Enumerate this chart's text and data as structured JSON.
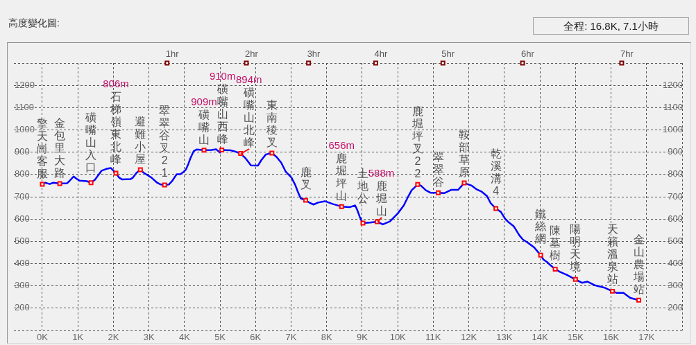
{
  "chart_data": {
    "type": "line",
    "title": "高度變化圖:",
    "subtitle": "全程: 16.8K, 7.1小時",
    "xlim": [
      -0.8,
      18
    ],
    "xticks": [
      {
        "value": 0,
        "label": "0K"
      },
      {
        "value": 1,
        "label": "1K"
      },
      {
        "value": 2,
        "label": "2K"
      },
      {
        "value": 3,
        "label": "3K"
      },
      {
        "value": 4,
        "label": "4K"
      },
      {
        "value": 5,
        "label": "5K"
      },
      {
        "value": 6,
        "label": "6K"
      },
      {
        "value": 7,
        "label": "7K"
      },
      {
        "value": 8,
        "label": "8K"
      },
      {
        "value": 9,
        "label": "9K"
      },
      {
        "value": 10,
        "label": "10K"
      },
      {
        "value": 11,
        "label": "11K"
      },
      {
        "value": 12,
        "label": "12K"
      },
      {
        "value": 13,
        "label": "13K"
      },
      {
        "value": 14,
        "label": "14K"
      },
      {
        "value": 15,
        "label": "15K"
      },
      {
        "value": 16,
        "label": "16K"
      },
      {
        "value": 17,
        "label": "17K"
      },
      {
        "value": 18,
        "label": null
      }
    ],
    "ylim": [
      100,
      1300
    ],
    "yticks": [
      {
        "value": 100,
        "label": null
      },
      200,
      300,
      400,
      500,
      600,
      700,
      800,
      900,
      1000,
      1100,
      1200,
      {
        "value": 1300,
        "label": null
      }
    ],
    "y2lim": [
      100,
      1300
    ],
    "y2ticks": [
      200,
      300,
      400,
      500,
      600,
      700,
      800,
      900,
      1000,
      1100,
      1200
    ],
    "grid": true,
    "series": [
      {
        "color": "#0000ff",
        "marker": "none",
        "x": [
          0,
          0.08,
          0.21,
          0.31,
          0.49,
          0.7,
          0.76,
          0.88,
          0.99,
          1.05,
          1.25,
          1.37,
          1.48,
          1.57,
          1.67,
          1.8,
          1.93,
          2.07,
          2.16,
          2.24,
          2.48,
          2.55,
          2.65,
          2.76,
          2.84,
          3.07,
          3.23,
          3.33,
          3.44,
          3.56,
          3.65,
          3.78,
          3.88,
          3.98,
          4.04,
          4.11,
          4.17,
          4.26,
          4.34,
          4.55,
          4.76,
          4.89,
          5,
          5.05,
          5.31,
          5.44,
          5.58,
          5.71,
          5.87,
          6.07,
          6.16,
          6.29,
          6.46,
          6.59,
          6.72,
          6.85,
          7.01,
          7.11,
          7.2,
          7.27,
          7.41,
          7.53,
          7.63,
          7.76,
          7.95,
          8.18,
          8.42,
          8.64,
          8.8,
          8.86,
          8.93,
          8.99,
          9.02,
          9.22,
          9.42,
          9.58,
          9.78,
          10,
          10.17,
          10.3,
          10.39,
          10.56,
          10.65,
          10.79,
          10.92,
          11.14,
          11.31,
          11.5,
          11.7,
          11.87,
          11.95,
          12.08,
          12.21,
          12.35,
          12.51,
          12.61,
          12.76,
          12.9,
          13.03,
          13.13,
          13.26,
          13.42,
          13.52,
          13.65,
          13.84,
          14.02,
          14.1,
          14.2,
          14.3,
          14.43,
          14.56,
          14.75,
          15,
          15.18,
          15.34,
          15.54,
          15.8,
          16.04,
          16.15,
          16.35,
          16.54,
          16.78
        ],
        "values": [
          756,
          763,
          757,
          763,
          759,
          761,
          770,
          791,
          778,
          772,
          770,
          763,
          776,
          796,
          817,
          825,
          829,
          806,
          786,
          778,
          779,
          786,
          807,
          821,
          809,
          786,
          763,
          755,
          753,
          755,
          770,
          801,
          801,
          812,
          822,
          848,
          874,
          905,
          912,
          909,
          910,
          913,
          898,
          910,
          908,
          902,
          894,
          874,
          841,
          840,
          864,
          890,
          896,
          879,
          853,
          812,
          786,
          755,
          718,
          693,
          684,
          672,
          665,
          674,
          680,
          667,
          656,
          653,
          661,
          641,
          610,
          589,
          582,
          584,
          588,
          576,
          589,
          625,
          661,
          703,
          729,
          755,
          750,
          729,
          718,
          718,
          716,
          731,
          731,
          762,
          757,
          750,
          734,
          724,
          703,
          672,
          647,
          632,
          599,
          584,
          568,
          527,
          508,
          495,
          472,
          438,
          418,
          407,
          392,
          375,
          363,
          350,
          329,
          314,
          319,
          303,
          293,
          276,
          269,
          269,
          246,
          236
        ]
      },
      {
        "type": "scatter",
        "color": "#ff0000",
        "marker": "square",
        "x": [
          0,
          0.49,
          1.37,
          2.07,
          2.76,
          3.44,
          4.55,
          5.05,
          5.58,
          6.46,
          7.41,
          8.42,
          9.02,
          9.42,
          10.56,
          11.14,
          11.87,
          12.76,
          14.02,
          14.43,
          15,
          16.04,
          16.78
        ],
        "values": [
          756,
          759,
          763,
          806,
          821,
          753,
          909,
          910,
          894,
          896,
          684,
          656,
          582,
          588,
          755,
          718,
          762,
          647,
          438,
          375,
          329,
          276,
          236
        ]
      },
      {
        "type": "scatter",
        "color": "#800000",
        "marker": "square",
        "x": [
          3.51,
          5.74,
          7.49,
          9.38,
          11.27,
          13.51,
          16.3
        ],
        "values": [
          1300,
          1300,
          1300,
          1300,
          1300,
          1300,
          1300
        ]
      }
    ],
    "annotations": [
      {
        "text": "擎天崗客服",
        "x": 0,
        "y": 756
      },
      {
        "text": "金包里大路",
        "x": 0.49,
        "y": 759
      },
      {
        "text": "磺嘴山入口",
        "x": 1.37,
        "y": 763
      },
      "806m",
      {
        "text": "石梯嶺東北峰",
        "x": 2.07,
        "y": 806
      },
      {
        "text": "避難小屋",
        "x": 2.76,
        "y": 821
      },
      {
        "text": "翠翠谷叉21",
        "x": 3.44,
        "y": 753
      },
      "909m",
      {
        "text": "磺嘴山",
        "x": 4.55,
        "y": 909
      },
      "910m",
      {
        "text": "磺嘴山西峰",
        "x": 5.05,
        "y": 910
      },
      "894m",
      {
        "text": "磺嘴山北峰",
        "x": 5.58,
        "y": 894
      },
      {
        "text": "東南稜叉",
        "x": 6.46,
        "y": 896
      },
      {
        "text": "鹿叉",
        "x": 7.41,
        "y": 684
      },
      "656m",
      {
        "text": "鹿堀坪山",
        "x": 8.42,
        "y": 656
      },
      {
        "text": "土地公",
        "x": 9.02,
        "y": 582
      },
      "588m",
      {
        "text": "鹿堀山",
        "x": 9.42,
        "y": 588
      },
      {
        "text": "鹿堀坪叉22",
        "x": 10.56,
        "y": 755
      },
      {
        "text": "翠翠谷",
        "x": 11.14,
        "y": 718
      },
      {
        "text": "鞍部草原",
        "x": 11.87,
        "y": 762
      },
      {
        "text": "乾溪溝4",
        "x": 12.76,
        "y": 647
      },
      {
        "text": "鐵絲網",
        "x": 14.02,
        "y": 438
      },
      {
        "text": "陳墓樹",
        "x": 14.43,
        "y": 375
      },
      {
        "text": "陽明天境",
        "x": 15,
        "y": 329
      },
      {
        "text": "天籟溫泉站",
        "x": 16.04,
        "y": 276
      },
      {
        "text": "金山農場站",
        "x": 16.78,
        "y": 236
      },
      {
        "text": "1hr",
        "x": 3.51,
        "y": 1300
      },
      {
        "text": "2hr",
        "x": 5.74,
        "y": 1300
      },
      {
        "text": "3hr",
        "x": 7.49,
        "y": 1300
      },
      {
        "text": "4hr",
        "x": 9.38,
        "y": 1300
      },
      {
        "text": "5hr",
        "x": 11.27,
        "y": 1300
      },
      {
        "text": "6hr",
        "x": 13.51,
        "y": 1300
      },
      {
        "text": "7hr",
        "x": 16.3,
        "y": 1300
      }
    ]
  }
}
